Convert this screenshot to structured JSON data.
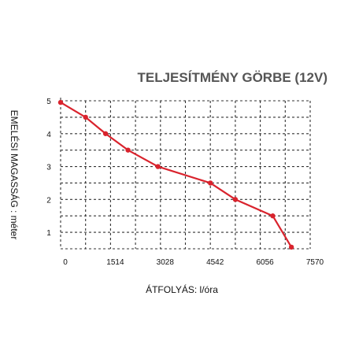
{
  "chart_data": {
    "type": "line",
    "title": "TELJESÍTMÉNY GÖRBE (12V)",
    "xlabel": "ÁTFOLYÁS: l/óra",
    "ylabel": "EMELÉSI MAGASSÁG : méter",
    "xlim": [
      0,
      7570
    ],
    "ylim": [
      0.5,
      5
    ],
    "x_ticks": [
      "0",
      "1514",
      "3028",
      "4542",
      "6056",
      "7570"
    ],
    "y_ticks": [
      "1",
      "2",
      "3",
      "4",
      "5"
    ],
    "grid": true,
    "line_color": "#d9232d",
    "series": [
      {
        "x": [
          0,
          757,
          1363,
          2044,
          2952,
          4542,
          5300,
          6435,
          7000
        ],
        "y": [
          4.95,
          4.5,
          4.0,
          3.5,
          3.0,
          2.5,
          2.0,
          1.5,
          0.55
        ]
      }
    ]
  }
}
